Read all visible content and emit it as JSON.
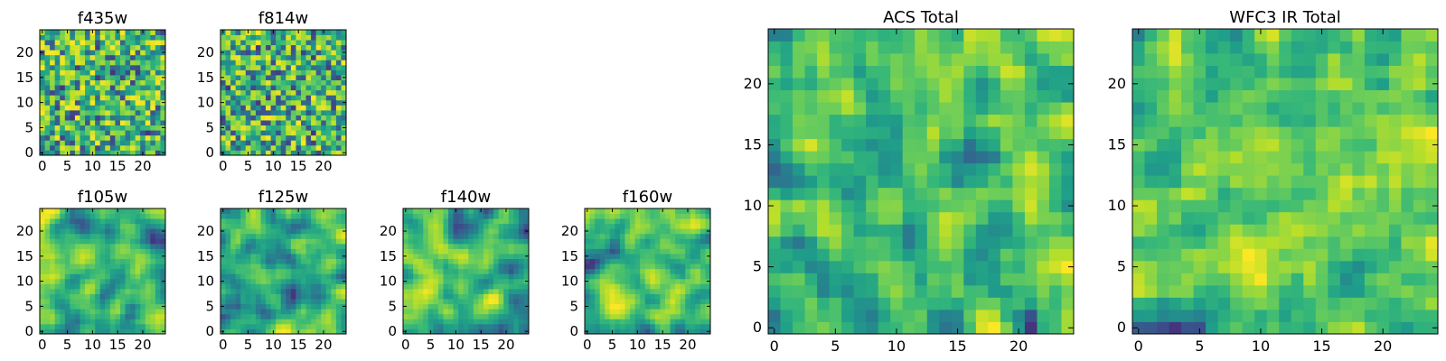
{
  "chart_data": [
    {
      "type": "heatmap",
      "title": "f435w",
      "colormap": "viridis",
      "grid_size": 25,
      "xlim": [
        -0.5,
        24.5
      ],
      "ylim": [
        -0.5,
        24.5
      ],
      "x_ticks": [
        0,
        5,
        10,
        15,
        20
      ],
      "y_ticks": [
        0,
        5,
        10,
        15,
        20
      ],
      "x_tick_labels": [
        "0",
        "5",
        "10",
        "15",
        "20"
      ],
      "y_tick_labels": [
        "0",
        "5",
        "10",
        "15",
        "20"
      ],
      "smoothness": 0,
      "seed": 11
    },
    {
      "type": "heatmap",
      "title": "f814w",
      "colormap": "viridis",
      "grid_size": 25,
      "xlim": [
        -0.5,
        24.5
      ],
      "ylim": [
        -0.5,
        24.5
      ],
      "x_ticks": [
        0,
        5,
        10,
        15,
        20
      ],
      "y_ticks": [
        0,
        5,
        10,
        15,
        20
      ],
      "x_tick_labels": [
        "0",
        "5",
        "10",
        "15",
        "20"
      ],
      "y_tick_labels": [
        "0",
        "5",
        "10",
        "15",
        "20"
      ],
      "smoothness": 0,
      "seed": 23
    },
    {
      "type": "heatmap",
      "title": "f105w",
      "colormap": "viridis",
      "grid_size": 25,
      "xlim": [
        -0.5,
        24.5
      ],
      "ylim": [
        -0.5,
        24.5
      ],
      "x_ticks": [
        0,
        5,
        10,
        15,
        20
      ],
      "y_ticks": [
        0,
        5,
        10,
        15,
        20
      ],
      "x_tick_labels": [
        "0",
        "5",
        "10",
        "15",
        "20"
      ],
      "y_tick_labels": [
        "0",
        "5",
        "10",
        "15",
        "20"
      ],
      "smoothness": 2,
      "seed": 37
    },
    {
      "type": "heatmap",
      "title": "f125w",
      "colormap": "viridis",
      "grid_size": 25,
      "xlim": [
        -0.5,
        24.5
      ],
      "ylim": [
        -0.5,
        24.5
      ],
      "x_ticks": [
        0,
        5,
        10,
        15,
        20
      ],
      "y_ticks": [
        0,
        5,
        10,
        15,
        20
      ],
      "x_tick_labels": [
        "0",
        "5",
        "10",
        "15",
        "20"
      ],
      "y_tick_labels": [
        "0",
        "5",
        "10",
        "15",
        "20"
      ],
      "smoothness": 2,
      "seed": 41
    },
    {
      "type": "heatmap",
      "title": "f140w",
      "colormap": "viridis",
      "grid_size": 25,
      "xlim": [
        -0.5,
        24.5
      ],
      "ylim": [
        -0.5,
        24.5
      ],
      "x_ticks": [
        0,
        5,
        10,
        15,
        20
      ],
      "y_ticks": [
        0,
        5,
        10,
        15,
        20
      ],
      "x_tick_labels": [
        "0",
        "5",
        "10",
        "15",
        "20"
      ],
      "y_tick_labels": [
        "0",
        "5",
        "10",
        "15",
        "20"
      ],
      "smoothness": 2,
      "seed": 53
    },
    {
      "type": "heatmap",
      "title": "f160w",
      "colormap": "viridis",
      "grid_size": 25,
      "xlim": [
        -0.5,
        24.5
      ],
      "ylim": [
        -0.5,
        24.5
      ],
      "x_ticks": [
        0,
        5,
        10,
        15,
        20
      ],
      "y_ticks": [
        0,
        5,
        10,
        15,
        20
      ],
      "x_tick_labels": [
        "0",
        "5",
        "10",
        "15",
        "20"
      ],
      "y_tick_labels": [
        "0",
        "5",
        "10",
        "15",
        "20"
      ],
      "smoothness": 2,
      "seed": 67
    },
    {
      "type": "heatmap",
      "title": "ACS Total",
      "colormap": "viridis",
      "grid_size": 25,
      "xlim": [
        -0.5,
        24.5
      ],
      "ylim": [
        -0.5,
        24.5
      ],
      "x_ticks": [
        0,
        5,
        10,
        15,
        20
      ],
      "y_ticks": [
        0,
        5,
        10,
        15,
        20
      ],
      "x_tick_labels": [
        "0",
        "5",
        "10",
        "15",
        "20"
      ],
      "y_tick_labels": [
        "0",
        "5",
        "10",
        "15",
        "20"
      ],
      "smoothness": 1,
      "seed": 79
    },
    {
      "type": "heatmap",
      "title": "WFC3 IR Total",
      "colormap": "viridis",
      "grid_size": 25,
      "xlim": [
        -0.5,
        24.5
      ],
      "ylim": [
        -0.5,
        24.5
      ],
      "x_ticks": [
        0,
        5,
        10,
        15,
        20
      ],
      "y_ticks": [
        0,
        5,
        10,
        15,
        20
      ],
      "x_tick_labels": [
        "0",
        "5",
        "10",
        "15",
        "20"
      ],
      "y_tick_labels": [
        "0",
        "5",
        "10",
        "15",
        "20"
      ],
      "smoothness": 1,
      "seed": 97
    }
  ]
}
